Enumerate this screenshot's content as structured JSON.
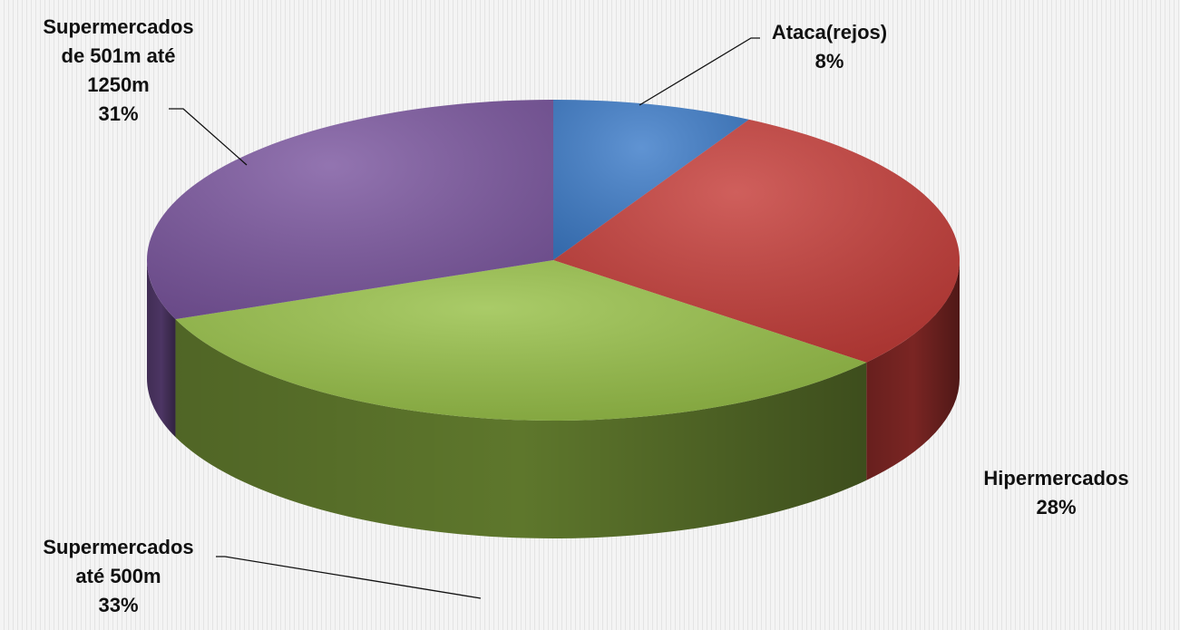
{
  "chart_data": {
    "type": "pie",
    "categories": [
      "Ataca(rejos)",
      "Hipermercados",
      "Supermercados até 500m",
      "Supermercados de 501m até 1250m"
    ],
    "values": [
      8,
      28,
      33,
      31
    ],
    "value_labels": [
      "8%",
      "28%",
      "33%",
      "31%"
    ],
    "colors": [
      "#3d7cc9",
      "#c53c38",
      "#97c047",
      "#7b569f"
    ]
  }
}
